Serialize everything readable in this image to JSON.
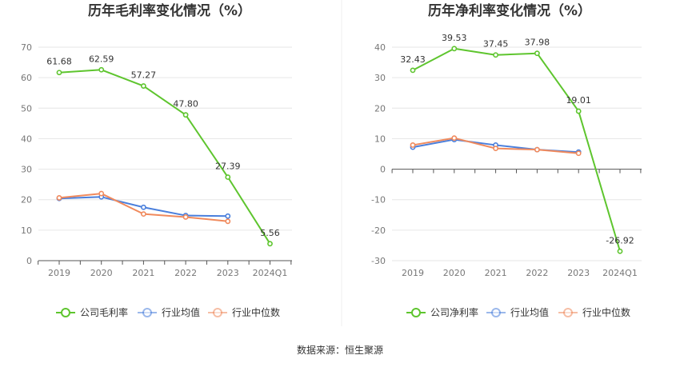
{
  "source": "数据来源：恒生聚源",
  "colors": {
    "company": "#5ec52e",
    "avg": "#4a7fdc",
    "median": "#f08a5d",
    "grid": "#e6e6e6",
    "axis": "#555555"
  },
  "chart_data": [
    {
      "type": "line",
      "title": "历年毛利率变化情况（%）",
      "categories": [
        "2019",
        "2020",
        "2021",
        "2022",
        "2023",
        "2024Q1"
      ],
      "ylim": [
        0,
        70
      ],
      "yticks": [
        0,
        10,
        20,
        30,
        40,
        50,
        60,
        70
      ],
      "grid": true,
      "legend_position": "bottom",
      "series": [
        {
          "name": "公司毛利率",
          "key": "company",
          "values": [
            61.68,
            62.59,
            57.27,
            47.8,
            27.39,
            5.56
          ],
          "labels": [
            "61.68",
            "62.59",
            "57.27",
            "47.80",
            "27.39",
            "5.56"
          ]
        },
        {
          "name": "行业均值",
          "key": "avg",
          "values": [
            20.4,
            20.9,
            17.5,
            14.8,
            14.6,
            null
          ]
        },
        {
          "name": "行业中位数",
          "key": "median",
          "values": [
            20.6,
            22.0,
            15.3,
            14.3,
            12.9,
            null
          ]
        }
      ]
    },
    {
      "type": "line",
      "title": "历年净利率变化情况（%）",
      "categories": [
        "2019",
        "2020",
        "2021",
        "2022",
        "2023",
        "2024Q1"
      ],
      "ylim": [
        -30,
        40
      ],
      "yticks": [
        -30,
        -20,
        -10,
        0,
        10,
        20,
        30,
        40
      ],
      "grid": true,
      "legend_position": "bottom",
      "series": [
        {
          "name": "公司净利率",
          "key": "company",
          "values": [
            32.43,
            39.53,
            37.45,
            37.98,
            19.01,
            -26.92
          ],
          "labels": [
            "32.43",
            "39.53",
            "37.45",
            "37.98",
            "19.01",
            "-26.92"
          ]
        },
        {
          "name": "行业均值",
          "key": "avg",
          "values": [
            7.2,
            9.7,
            7.9,
            6.4,
            5.6,
            null
          ]
        },
        {
          "name": "行业中位数",
          "key": "median",
          "values": [
            7.9,
            10.2,
            6.8,
            6.4,
            5.2,
            null
          ]
        }
      ]
    }
  ]
}
